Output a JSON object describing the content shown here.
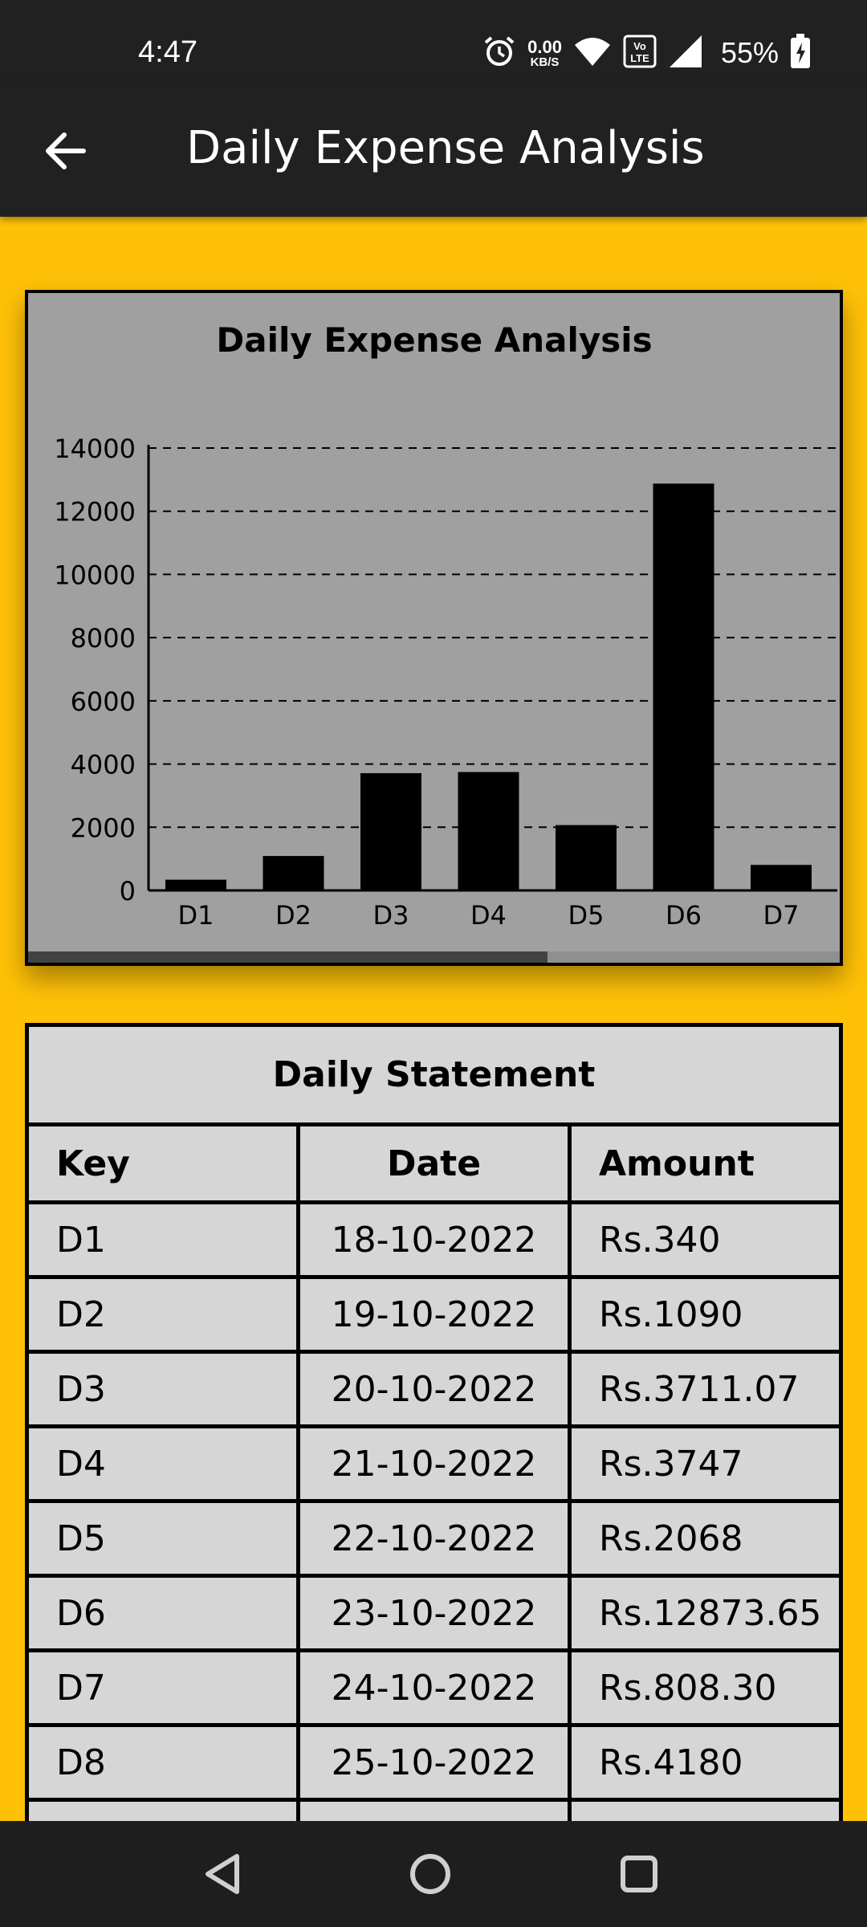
{
  "status_bar": {
    "time": "4:47",
    "net_speed_value": "0.00",
    "net_speed_unit": "KB/S",
    "volte_label": "Vo LTE",
    "battery_percent": "55%",
    "icons": [
      "alarm-icon",
      "wifi-icon",
      "volte-icon",
      "signal-icon",
      "battery-charging-icon"
    ]
  },
  "app_bar": {
    "back_icon": "arrow-left-icon",
    "title": "Daily Expense Analysis"
  },
  "chart_data": {
    "type": "bar",
    "title": "Daily Expense Analysis",
    "categories": [
      "D1",
      "D2",
      "D3",
      "D4",
      "D5",
      "D6",
      "D7"
    ],
    "values": [
      340,
      1090,
      3711.07,
      3747,
      2068,
      12873.65,
      808.3
    ],
    "yticks": [
      "0",
      "2000",
      "4000",
      "6000",
      "8000",
      "10000",
      "12000",
      "14000"
    ],
    "ylim": [
      0,
      14000
    ],
    "grid": "dashed-horizontal",
    "bar_color": "#000000",
    "background": "#A0A0A0",
    "horizontal_scroll_fraction": 0.64
  },
  "statement": {
    "title": "Daily Statement",
    "headers": [
      "Key",
      "Date",
      "Amount"
    ],
    "rows": [
      [
        "D1",
        "18-10-2022",
        "Rs.340"
      ],
      [
        "D2",
        "19-10-2022",
        "Rs.1090"
      ],
      [
        "D3",
        "20-10-2022",
        "Rs.3711.07"
      ],
      [
        "D4",
        "21-10-2022",
        "Rs.3747"
      ],
      [
        "D5",
        "22-10-2022",
        "Rs.2068"
      ],
      [
        "D6",
        "23-10-2022",
        "Rs.12873.65"
      ],
      [
        "D7",
        "24-10-2022",
        "Rs.808.30"
      ],
      [
        "D8",
        "25-10-2022",
        "Rs.4180"
      ]
    ]
  },
  "nav_bar": {
    "buttons": [
      "back-triangle-icon",
      "home-circle-icon",
      "recents-square-icon"
    ]
  },
  "colors": {
    "background": "#FFC107",
    "bars": "#212121",
    "table_bg": "#D6D6D6"
  }
}
